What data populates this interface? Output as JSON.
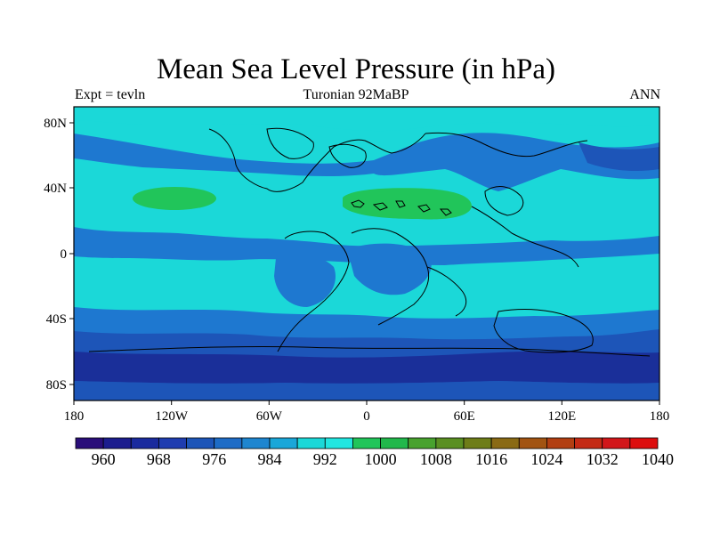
{
  "title": "Mean Sea Level Pressure (in hPa)",
  "subtitle_left": "Expt = tevln",
  "subtitle_center": "Turonian  92MaBP",
  "subtitle_right": "ANN",
  "map": {
    "lon_ticks": [
      "180",
      "120W",
      "60W",
      "0",
      "60E",
      "120E",
      "180"
    ],
    "lat_ticks": [
      "80N",
      "40N",
      "0",
      "40S",
      "80S"
    ],
    "colors": {
      "pressure_976_984": "#1d55b8",
      "pressure_984_992": "#1e78d0",
      "pressure_992_1000": "#1bd8d8",
      "pressure_1000_1008": "#21c55a",
      "pressure_960_976": "#1a2f99",
      "coastline": "#000000"
    }
  },
  "colorbar": {
    "colors": [
      "#2a0e7a",
      "#1c1d8e",
      "#1a2b9e",
      "#1f3db0",
      "#1d55b8",
      "#1e6cc6",
      "#1e86d0",
      "#1aa7d9",
      "#1bd8d8",
      "#22e6e0",
      "#21c55a",
      "#21b84b",
      "#48a22e",
      "#5a8f22",
      "#6e7d18",
      "#8a6a14",
      "#a25412",
      "#b23f12",
      "#c42a14",
      "#d2161a",
      "#dd0e0e"
    ],
    "labels": [
      "960",
      "968",
      "976",
      "984",
      "992",
      "1000",
      "1008",
      "1016",
      "1024",
      "1032",
      "1040"
    ]
  }
}
